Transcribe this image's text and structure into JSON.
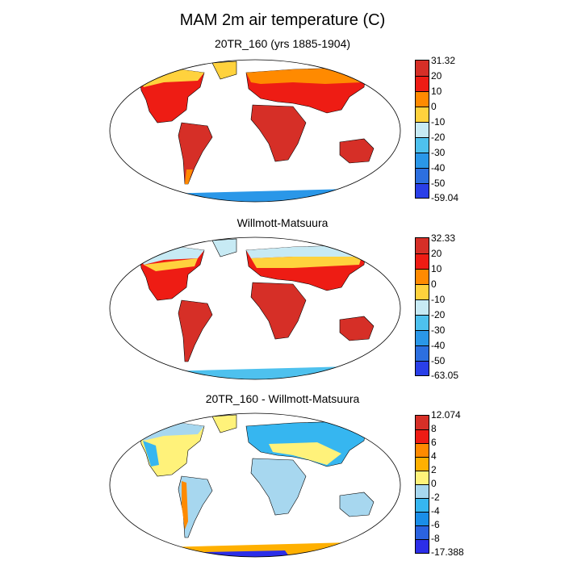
{
  "figure": {
    "title": "MAM 2m air temperature (C)"
  },
  "panels": [
    {
      "title": "20TR_160 (yrs 1885-1904)",
      "colorbar": {
        "labels": [
          "31.32",
          "20",
          "10",
          "0",
          "-10",
          "-20",
          "-30",
          "-40",
          "-50",
          "-59.04"
        ],
        "colors": [
          "#d62f27",
          "#ee1c14",
          "#ff8a00",
          "#ffd23d",
          "#c7eaf4",
          "#4ec1ee",
          "#2a97e8",
          "#2c6fe0",
          "#2a3fe8"
        ]
      }
    },
    {
      "title": "Willmott-Matsuura",
      "colorbar": {
        "labels": [
          "32.33",
          "20",
          "10",
          "0",
          "-10",
          "-20",
          "-30",
          "-40",
          "-50",
          "-63.05"
        ],
        "colors": [
          "#d62f27",
          "#ee1c14",
          "#ff8a00",
          "#ffd23d",
          "#c7eaf4",
          "#4ec1ee",
          "#2a97e8",
          "#2c6fe0",
          "#2a3fe8"
        ]
      }
    },
    {
      "title": "20TR_160 - Willmott-Matsuura",
      "colorbar": {
        "labels": [
          "12.074",
          "8",
          "6",
          "4",
          "2",
          "0",
          "-2",
          "-4",
          "-6",
          "-8",
          "-17.388"
        ],
        "colors": [
          "#d62f27",
          "#ee1c14",
          "#ff8a00",
          "#ffb000",
          "#fff27a",
          "#a7d7ef",
          "#36b6f0",
          "#1a8ee8",
          "#2b63e0",
          "#2c2ee8"
        ]
      }
    }
  ]
}
